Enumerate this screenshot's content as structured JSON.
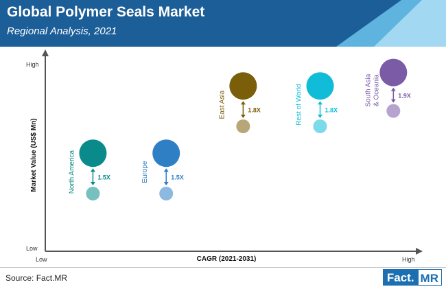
{
  "header": {
    "title": "Global Polymer Seals Market",
    "subtitle": "Regional Analysis, 2021",
    "background_color": "#1c5e98",
    "accent_colors": [
      "#5fb4df",
      "#a3d8f2"
    ]
  },
  "chart_data": {
    "type": "scatter",
    "title": "Global Polymer Seals Market",
    "subtitle": "Regional Analysis, 2021",
    "xlabel": "CAGR (2021-2031)",
    "ylabel": "Market Value (US$ Mn)",
    "x_ticks": {
      "low": "Low",
      "high": "High"
    },
    "y_ticks": {
      "low": "Low",
      "high": "High"
    },
    "xlim": [
      0,
      100
    ],
    "ylim": [
      0,
      100
    ],
    "grid": false,
    "legend": "none",
    "series": [
      {
        "name": "North America",
        "color": "#0a8a8a",
        "x": 13,
        "current": 51,
        "future": 30,
        "multiplier": "1.5X"
      },
      {
        "name": "Europe",
        "color": "#2e7fc4",
        "x": 33,
        "current": 51,
        "future": 30,
        "multiplier": "1.5X"
      },
      {
        "name": "East Asia",
        "color": "#7a5e0a",
        "x": 54,
        "current": 86,
        "future": 65,
        "multiplier": "1.8X"
      },
      {
        "name": "Rest of World",
        "color": "#10bcd8",
        "x": 75,
        "current": 86,
        "future": 65,
        "multiplier": "1.8X"
      },
      {
        "name": "South Asia & Oceania",
        "color": "#7b5aa6",
        "x": 95,
        "current": 93,
        "future": 73,
        "multiplier": "1.9X"
      }
    ]
  },
  "footer": {
    "source": "Source: Fact.MR",
    "logo_left": "Fact.",
    "logo_right": "MR"
  }
}
